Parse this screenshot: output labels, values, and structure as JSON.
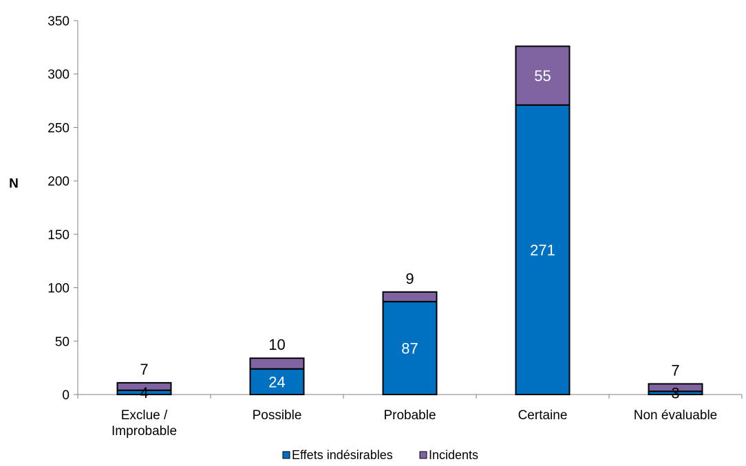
{
  "chart_data": {
    "type": "bar",
    "stacked": true,
    "categories": [
      [
        "Exclue /",
        "Improbable"
      ],
      [
        "Possible"
      ],
      [
        "Probable"
      ],
      [
        "Certaine"
      ],
      [
        "Non évaluable"
      ]
    ],
    "series": [
      {
        "name": "Effets indésirables",
        "values": [
          4,
          24,
          87,
          271,
          3
        ],
        "color": "#0070C0",
        "label_color": "#ffffff"
      },
      {
        "name": "Incidents",
        "values": [
          7,
          10,
          9,
          55,
          7
        ],
        "color": "#8064A2",
        "label_color": "#ffffff"
      }
    ],
    "ylabel": "N",
    "ylim": [
      0,
      350
    ],
    "yticks": [
      0,
      50,
      100,
      150,
      200,
      250,
      300,
      350
    ],
    "legend_position": "bottom",
    "grid": false
  }
}
